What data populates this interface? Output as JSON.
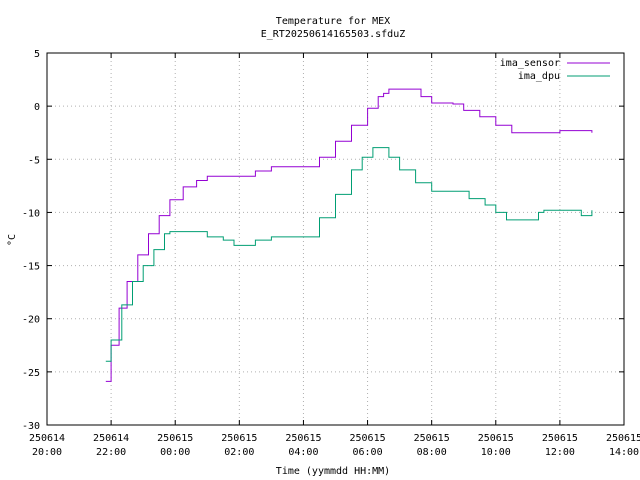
{
  "chart_data": {
    "type": "line",
    "title": "Temperature for MEX",
    "subtitle": "E_RT20250614165503.sfduZ",
    "xlabel": "Time (yymmdd HH:MM)",
    "ylabel": "°C",
    "xlim": [
      "2025-06-14 20:00",
      "2025-06-15 14:00"
    ],
    "ylim": [
      -30,
      5
    ],
    "yticks": [
      5,
      0,
      -5,
      -10,
      -15,
      -20,
      -25,
      -30
    ],
    "xticks": [
      {
        "date": "250614",
        "time": "20:00"
      },
      {
        "date": "250614",
        "time": "22:00"
      },
      {
        "date": "250615",
        "time": "00:00"
      },
      {
        "date": "250615",
        "time": "02:00"
      },
      {
        "date": "250615",
        "time": "04:00"
      },
      {
        "date": "250615",
        "time": "06:00"
      },
      {
        "date": "250615",
        "time": "08:00"
      },
      {
        "date": "250615",
        "time": "10:00"
      },
      {
        "date": "250615",
        "time": "12:00"
      },
      {
        "date": "250615",
        "time": "14:00"
      }
    ],
    "grid": true,
    "legend_position": "top-right",
    "series": [
      {
        "name": "ima_sensor",
        "color": "#9400d3",
        "points": [
          [
            "2025-06-14 21:50",
            -25.9
          ],
          [
            "2025-06-14 22:00",
            -22.5
          ],
          [
            "2025-06-14 22:15",
            -19.0
          ],
          [
            "2025-06-14 22:30",
            -16.5
          ],
          [
            "2025-06-14 22:50",
            -14.0
          ],
          [
            "2025-06-14 23:10",
            -12.0
          ],
          [
            "2025-06-14 23:30",
            -10.3
          ],
          [
            "2025-06-14 23:50",
            -8.8
          ],
          [
            "2025-06-15 00:15",
            -7.6
          ],
          [
            "2025-06-15 00:40",
            -7.0
          ],
          [
            "2025-06-15 01:00",
            -6.6
          ],
          [
            "2025-06-15 02:00",
            -6.6
          ],
          [
            "2025-06-15 02:30",
            -6.1
          ],
          [
            "2025-06-15 03:00",
            -5.7
          ],
          [
            "2025-06-15 03:50",
            -5.7
          ],
          [
            "2025-06-15 04:30",
            -4.8
          ],
          [
            "2025-06-15 05:00",
            -3.3
          ],
          [
            "2025-06-15 05:30",
            -1.8
          ],
          [
            "2025-06-15 06:00",
            -0.2
          ],
          [
            "2025-06-15 06:20",
            0.9
          ],
          [
            "2025-06-15 06:30",
            1.2
          ],
          [
            "2025-06-15 06:40",
            1.6
          ],
          [
            "2025-06-15 07:20",
            1.6
          ],
          [
            "2025-06-15 07:40",
            0.9
          ],
          [
            "2025-06-15 08:00",
            0.3
          ],
          [
            "2025-06-15 08:40",
            0.2
          ],
          [
            "2025-06-15 09:00",
            -0.4
          ],
          [
            "2025-06-15 09:30",
            -1.0
          ],
          [
            "2025-06-15 10:00",
            -1.8
          ],
          [
            "2025-06-15 10:30",
            -2.5
          ],
          [
            "2025-06-15 12:00",
            -2.3
          ],
          [
            "2025-06-15 13:00",
            -2.5
          ]
        ]
      },
      {
        "name": "ima_dpu",
        "color": "#009e73",
        "points": [
          [
            "2025-06-14 21:50",
            -24.0
          ],
          [
            "2025-06-14 22:00",
            -22.0
          ],
          [
            "2025-06-14 22:20",
            -18.7
          ],
          [
            "2025-06-14 22:40",
            -16.5
          ],
          [
            "2025-06-14 23:00",
            -15.0
          ],
          [
            "2025-06-14 23:20",
            -13.5
          ],
          [
            "2025-06-14 23:40",
            -12.0
          ],
          [
            "2025-06-14 23:50",
            -11.8
          ],
          [
            "2025-06-15 00:40",
            -11.8
          ],
          [
            "2025-06-15 01:00",
            -12.3
          ],
          [
            "2025-06-15 01:30",
            -12.6
          ],
          [
            "2025-06-15 01:50",
            -13.1
          ],
          [
            "2025-06-15 02:10",
            -13.1
          ],
          [
            "2025-06-15 02:30",
            -12.6
          ],
          [
            "2025-06-15 03:00",
            -12.3
          ],
          [
            "2025-06-15 04:00",
            -12.3
          ],
          [
            "2025-06-15 04:30",
            -10.5
          ],
          [
            "2025-06-15 05:00",
            -8.3
          ],
          [
            "2025-06-15 05:30",
            -6.0
          ],
          [
            "2025-06-15 05:50",
            -4.8
          ],
          [
            "2025-06-15 06:10",
            -3.9
          ],
          [
            "2025-06-15 06:20",
            -3.9
          ],
          [
            "2025-06-15 06:40",
            -4.8
          ],
          [
            "2025-06-15 07:00",
            -6.0
          ],
          [
            "2025-06-15 07:30",
            -7.2
          ],
          [
            "2025-06-15 08:00",
            -8.0
          ],
          [
            "2025-06-15 08:50",
            -8.0
          ],
          [
            "2025-06-15 09:10",
            -8.7
          ],
          [
            "2025-06-15 09:40",
            -9.3
          ],
          [
            "2025-06-15 10:00",
            -10.0
          ],
          [
            "2025-06-15 10:20",
            -10.7
          ],
          [
            "2025-06-15 11:10",
            -10.7
          ],
          [
            "2025-06-15 11:20",
            -10.0
          ],
          [
            "2025-06-15 11:30",
            -9.8
          ],
          [
            "2025-06-15 12:30",
            -9.8
          ],
          [
            "2025-06-15 12:40",
            -10.3
          ],
          [
            "2025-06-15 13:00",
            -9.8
          ]
        ]
      }
    ]
  }
}
